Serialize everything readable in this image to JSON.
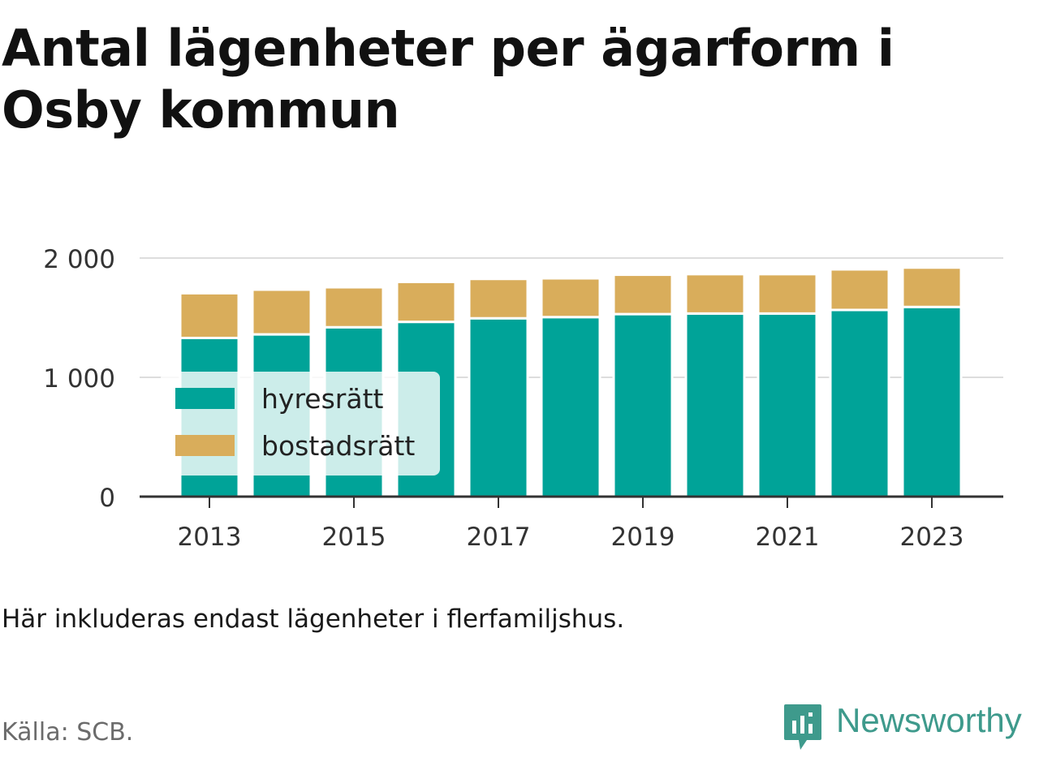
{
  "title": "Antal lägenheter per ägarform i Osby kommun",
  "note": "Här inkluderas endast lägenheter i flerfamiljshus.",
  "source": "Källa: SCB.",
  "brand": {
    "name": "Newsworthy",
    "icon": "newsworthy-logo-icon",
    "color": "#3e9a8c"
  },
  "chart_data": {
    "type": "bar",
    "stacked": true,
    "categories": [
      "2013",
      "2014",
      "2015",
      "2016",
      "2017",
      "2018",
      "2019",
      "2020",
      "2021",
      "2022",
      "2023"
    ],
    "x_tick_labels": [
      "2013",
      "2015",
      "2017",
      "2019",
      "2021",
      "2023"
    ],
    "series": [
      {
        "name": "hyresrätt",
        "color": "#00a398",
        "values": [
          1330,
          1360,
          1420,
          1465,
          1495,
          1505,
          1530,
          1535,
          1535,
          1565,
          1590
        ]
      },
      {
        "name": "bostadsrätt",
        "color": "#d9ad5b",
        "values": [
          375,
          375,
          335,
          335,
          330,
          325,
          330,
          330,
          330,
          340,
          330
        ]
      }
    ],
    "ylim": [
      0,
      2000
    ],
    "y_ticks": [
      {
        "value": 0,
        "label": "0"
      },
      {
        "value": 1000,
        "label": "1 000"
      },
      {
        "value": 2000,
        "label": "2 000"
      }
    ],
    "grid": true,
    "legend_position": "bottom-left (inside plot)",
    "xlabel": "",
    "ylabel": ""
  }
}
